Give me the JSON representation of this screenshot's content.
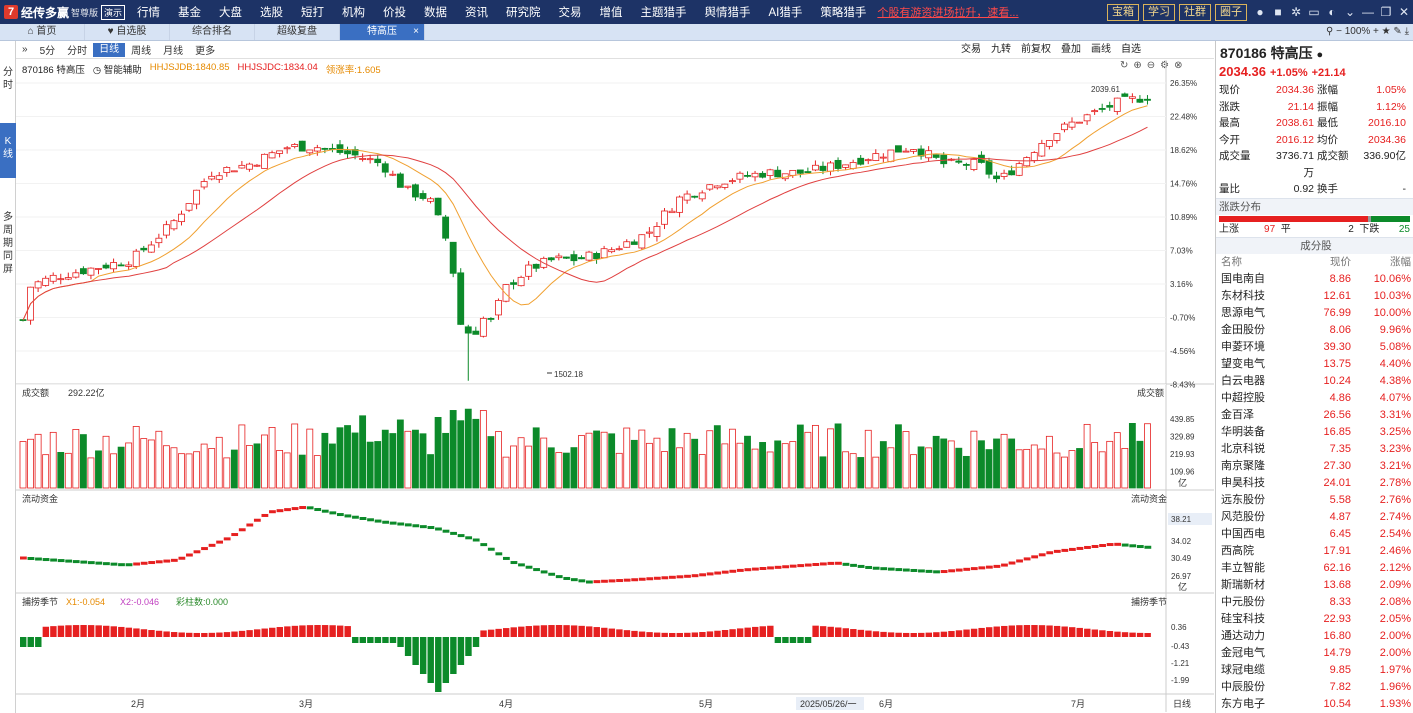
{
  "app": {
    "logo": "经传多赢",
    "edition": "智尊版",
    "demo": "演示"
  },
  "menu": [
    "行情",
    "基金",
    "大盘",
    "选股",
    "短打",
    "机构",
    "价投",
    "数据",
    "资讯",
    "研究院",
    "交易",
    "增值",
    "主题猎手",
    "舆情猎手",
    "AI猎手",
    "策略猎手"
  ],
  "marquee": "个股有游资进场拉升，速看...",
  "right_buttons": [
    "宝箱",
    "学习",
    "社群",
    "圈子"
  ],
  "zoom": "100%",
  "tabs": [
    "首页",
    "自选股",
    "综合排名",
    "超级复盘",
    "特高压"
  ],
  "left_strip": [
    "分时",
    "K线",
    "多周期同屏"
  ],
  "chart_toolbar": {
    "periods": [
      "5分",
      "分时",
      "日线",
      "周线",
      "月线",
      "更多"
    ],
    "active": "日线",
    "right": [
      "交易",
      "九转",
      "前复权",
      "叠加",
      "画线",
      "自选"
    ]
  },
  "chart_info": {
    "code_name": "870186 特高压",
    "assist": "智能辅助",
    "ind1": "HHJSJDB:1840.85",
    "ind2": "HHJSJDC:1834.04",
    "ind3": "领涨率:1.605"
  },
  "volume_panel": {
    "title": "成交额",
    "value": "292.22亿",
    "unit": "亿",
    "ticks": [
      "439.85",
      "329.89",
      "219.93",
      "109.96"
    ]
  },
  "flow_panel": {
    "title": "流动资金",
    "ticks": [
      "38.21",
      "34.02",
      "30.49",
      "26.97"
    ],
    "unit": "亿"
  },
  "osc_panel": {
    "title": "捕捞季节",
    "x1": "X1:-0.054",
    "x2": "X2:-0.046",
    "bars": "彩柱数:0.000",
    "ticks": [
      "0.36",
      "-0.43",
      "-1.21",
      "-1.99"
    ]
  },
  "date_axis": {
    "labels": [
      "2月",
      "3月",
      "4月",
      "5月",
      "6月",
      "7月"
    ],
    "cursor": "2025/05/26/一",
    "period_btn": "日线"
  },
  "chart_data": {
    "type": "candlestick",
    "y_ticks": [
      "26.35%",
      "22.48%",
      "18.62%",
      "14.76%",
      "10.89%",
      "7.03%",
      "3.16%",
      "-0.70%",
      "-4.56%",
      "-8.43%"
    ],
    "high_label": "2039.61",
    "low_label": "1502.18"
  },
  "quote": {
    "title": "870186 特高压",
    "price": "2034.36",
    "change_pct": "+1.05%",
    "change": "+21.14",
    "rows": [
      [
        "现价",
        "2034.36",
        "涨幅",
        "1.05%"
      ],
      [
        "涨跌",
        "21.14",
        "振幅",
        "1.12%"
      ],
      [
        "最高",
        "2038.61",
        "最低",
        "2016.10"
      ],
      [
        "今开",
        "2016.12",
        "均价",
        "2034.36"
      ],
      [
        "成交量",
        "3736.71万",
        "成交额",
        "336.90亿"
      ],
      [
        "量比",
        "0.92",
        "换手",
        "-"
      ]
    ],
    "dist_title": "涨跌分布",
    "up_label": "上涨",
    "up": "97",
    "flat_label": "平",
    "flat": "2",
    "down_label": "下跌",
    "down": "25",
    "comp_title": "成分股",
    "comp_headers": [
      "名称",
      "现价",
      "涨幅"
    ],
    "components": [
      [
        "国电南自",
        "8.86",
        "10.06%"
      ],
      [
        "东材科技",
        "12.61",
        "10.03%"
      ],
      [
        "思源电气",
        "76.99",
        "10.00%"
      ],
      [
        "金田股份",
        "8.06",
        "9.96%"
      ],
      [
        "申菱环境",
        "39.30",
        "5.08%"
      ],
      [
        "望变电气",
        "13.75",
        "4.40%"
      ],
      [
        "白云电器",
        "10.24",
        "4.38%"
      ],
      [
        "中超控股",
        "4.86",
        "4.07%"
      ],
      [
        "金百泽",
        "26.56",
        "3.31%"
      ],
      [
        "华明装备",
        "16.85",
        "3.25%"
      ],
      [
        "北京科锐",
        "7.35",
        "3.23%"
      ],
      [
        "南京聚隆",
        "27.30",
        "3.21%"
      ],
      [
        "申昊科技",
        "24.01",
        "2.78%"
      ],
      [
        "远东股份",
        "5.58",
        "2.76%"
      ],
      [
        "风范股份",
        "4.87",
        "2.74%"
      ],
      [
        "中国西电",
        "6.45",
        "2.54%"
      ],
      [
        "西高院",
        "17.91",
        "2.46%"
      ],
      [
        "丰立智能",
        "62.16",
        "2.12%"
      ],
      [
        "斯瑞新材",
        "13.68",
        "2.09%"
      ],
      [
        "中元股份",
        "8.33",
        "2.08%"
      ],
      [
        "硅宝科技",
        "22.93",
        "2.05%"
      ],
      [
        "通达动力",
        "16.80",
        "2.00%"
      ],
      [
        "金冠电气",
        "14.79",
        "2.00%"
      ],
      [
        "球冠电缆",
        "9.85",
        "1.97%"
      ],
      [
        "中辰股份",
        "7.82",
        "1.96%"
      ],
      [
        "东方电子",
        "10.54",
        "1.93%"
      ]
    ]
  }
}
